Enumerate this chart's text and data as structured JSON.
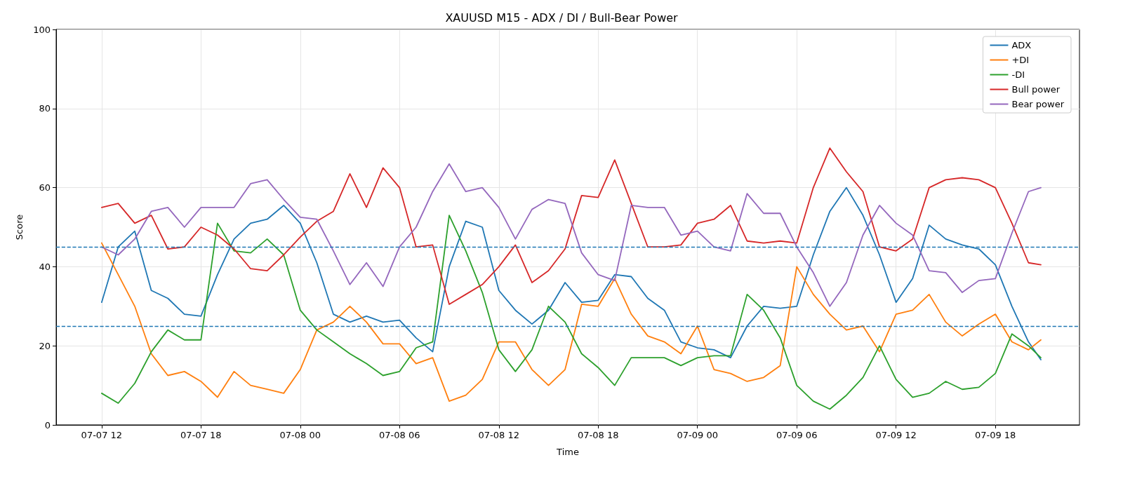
{
  "chart_data": {
    "type": "line",
    "title": "XAUUSD M15 - ADX / DI / Bull-Bear Power",
    "xlabel": "Time",
    "ylabel": "Score",
    "x": [
      "--07-07T12:00",
      "--07-07T13:00",
      "--07-07T14:00",
      "--07-07T15:00",
      "--07-07T16:00",
      "--07-07T17:00",
      "--07-07T18:00",
      "--07-07T19:00",
      "--07-07T20:00",
      "--07-07T21:00",
      "--07-07T22:00",
      "--07-07T23:00",
      "--07-08T00:00",
      "--07-08T01:00",
      "--07-08T02:00",
      "--07-08T03:00",
      "--07-08T04:00",
      "--07-08T05:00",
      "--07-08T06:00",
      "--07-08T07:00",
      "--07-08T08:00",
      "--07-08T09:00",
      "--07-08T10:00",
      "--07-08T11:00",
      "--07-08T12:00",
      "--07-08T13:00",
      "--07-08T14:00",
      "--07-08T15:00",
      "--07-08T16:00",
      "--07-08T17:00",
      "--07-08T18:00",
      "--07-08T19:00",
      "--07-08T20:00",
      "--07-08T21:00",
      "--07-08T22:00",
      "--07-08T23:00",
      "--07-09T00:00",
      "--07-09T01:00",
      "--07-09T02:00",
      "--07-09T03:00",
      "--07-09T04:00",
      "--07-09T05:00",
      "--07-09T06:00",
      "--07-09T07:00",
      "--07-09T08:00",
      "--07-09T09:00",
      "--07-09T10:00",
      "--07-09T11:00",
      "--07-09T12:00",
      "--07-09T13:00",
      "--07-09T14:00",
      "--07-09T15:00",
      "--07-09T16:00",
      "--07-09T17:00",
      "--07-09T18:00",
      "--07-09T19:00",
      "--07-09T20:00",
      "--07-09T20:45"
    ],
    "series": [
      {
        "name": "ADX",
        "color": "#1f77b4",
        "values": [
          31,
          45,
          49,
          34,
          32,
          28,
          27.5,
          38,
          47,
          51,
          52,
          55.5,
          51,
          41,
          28,
          26,
          27.5,
          26,
          26.5,
          22,
          18.5,
          40,
          51.5,
          50,
          34,
          29,
          25.5,
          29,
          36,
          31,
          31.5,
          38,
          37.5,
          32,
          29,
          21,
          19.5,
          19,
          17,
          25,
          30,
          29.5,
          30,
          43,
          54,
          60,
          53,
          43,
          31,
          37,
          50.5,
          47,
          45.5,
          44.5,
          40.5,
          30,
          21,
          16.5
        ]
      },
      {
        "name": "+DI",
        "color": "#ff7f0e",
        "values": [
          46,
          38,
          30,
          18,
          12.5,
          13.5,
          11,
          7,
          13.5,
          10,
          9,
          8,
          14,
          24,
          26,
          30,
          26,
          20.5,
          20.5,
          15.5,
          17,
          6,
          7.5,
          11.5,
          21,
          21,
          14,
          10,
          14,
          30.5,
          30,
          37,
          28,
          22.5,
          21,
          18,
          25,
          14,
          13,
          11,
          12,
          15,
          40,
          33,
          28,
          24,
          25,
          18.5,
          28,
          29,
          33,
          26,
          22.5,
          25.5,
          28,
          21,
          19,
          21.5
        ]
      },
      {
        "name": "-DI",
        "color": "#2ca02c",
        "values": [
          8,
          5.5,
          10.5,
          18.5,
          24,
          21.5,
          21.5,
          51,
          44,
          43.5,
          47,
          43,
          29,
          24,
          21,
          18,
          15.5,
          12.5,
          13.5,
          19.5,
          21,
          53,
          44,
          33.5,
          19,
          13.5,
          19,
          30,
          26,
          18,
          14.5,
          10,
          17,
          17,
          17,
          15,
          17,
          17.5,
          17.5,
          33,
          29,
          22,
          10,
          6,
          4,
          7.5,
          12,
          20,
          11.5,
          7,
          8,
          11,
          9,
          9.5,
          13,
          23,
          20,
          17
        ]
      },
      {
        "name": "Bull power",
        "color": "#d62728",
        "values": [
          55,
          56,
          51,
          53,
          44.5,
          45,
          50,
          48,
          44.5,
          39.5,
          39,
          43,
          47.5,
          51.5,
          54,
          63.5,
          55,
          65,
          60,
          45,
          45.5,
          30.5,
          33,
          35.5,
          40,
          45.5,
          36,
          39,
          44.5,
          58,
          57.5,
          67,
          56,
          45,
          45,
          45.5,
          51,
          52,
          55.5,
          46.5,
          46,
          46.5,
          46,
          60,
          70,
          64,
          59,
          45,
          44,
          47,
          60,
          62,
          62.5,
          62,
          60,
          51,
          41,
          40.5
        ]
      },
      {
        "name": "Bear power",
        "color": "#9467bd",
        "values": [
          45,
          43,
          47,
          54,
          55,
          50,
          55,
          55,
          55,
          61,
          62,
          57,
          52.5,
          52,
          44,
          35.5,
          41,
          35,
          45,
          50,
          59,
          66,
          59,
          60,
          55,
          47,
          54.5,
          57,
          56,
          43.5,
          38,
          36.5,
          55.5,
          55,
          55,
          48,
          49,
          45,
          44,
          58.5,
          53.5,
          53.5,
          45,
          38.5,
          30,
          36,
          48,
          55.5,
          51,
          48,
          39,
          38.5,
          33.5,
          36.5,
          37,
          48.5,
          59,
          60
        ]
      }
    ],
    "xlim": [
      "--07-07T09:15",
      "--07-09T23:05"
    ],
    "xticks": [
      {
        "value": "--07-07T12:00",
        "label": "07-07 12"
      },
      {
        "value": "--07-07T18:00",
        "label": "07-07 18"
      },
      {
        "value": "--07-08T00:00",
        "label": "07-08 00"
      },
      {
        "value": "--07-08T06:00",
        "label": "07-08 06"
      },
      {
        "value": "--07-08T12:00",
        "label": "07-08 12"
      },
      {
        "value": "--07-08T18:00",
        "label": "07-08 18"
      },
      {
        "value": "--07-09T00:00",
        "label": "07-09 00"
      },
      {
        "value": "--07-09T06:00",
        "label": "07-09 06"
      },
      {
        "value": "--07-09T12:00",
        "label": "07-09 12"
      },
      {
        "value": "--07-09T18:00",
        "label": "07-09 18"
      }
    ],
    "ylim": [
      0,
      100
    ],
    "yticks": [
      0,
      20,
      40,
      60,
      80,
      100
    ],
    "ref_lines": [
      {
        "axis": "y",
        "value": 45,
        "color": "#1f77b4",
        "line_style": "dashed"
      },
      {
        "axis": "y",
        "value": 25,
        "color": "#1f77b4",
        "line_style": "dashed"
      }
    ],
    "grid": true,
    "legend": "top right",
    "marker": "none",
    "line_style": "solid"
  }
}
